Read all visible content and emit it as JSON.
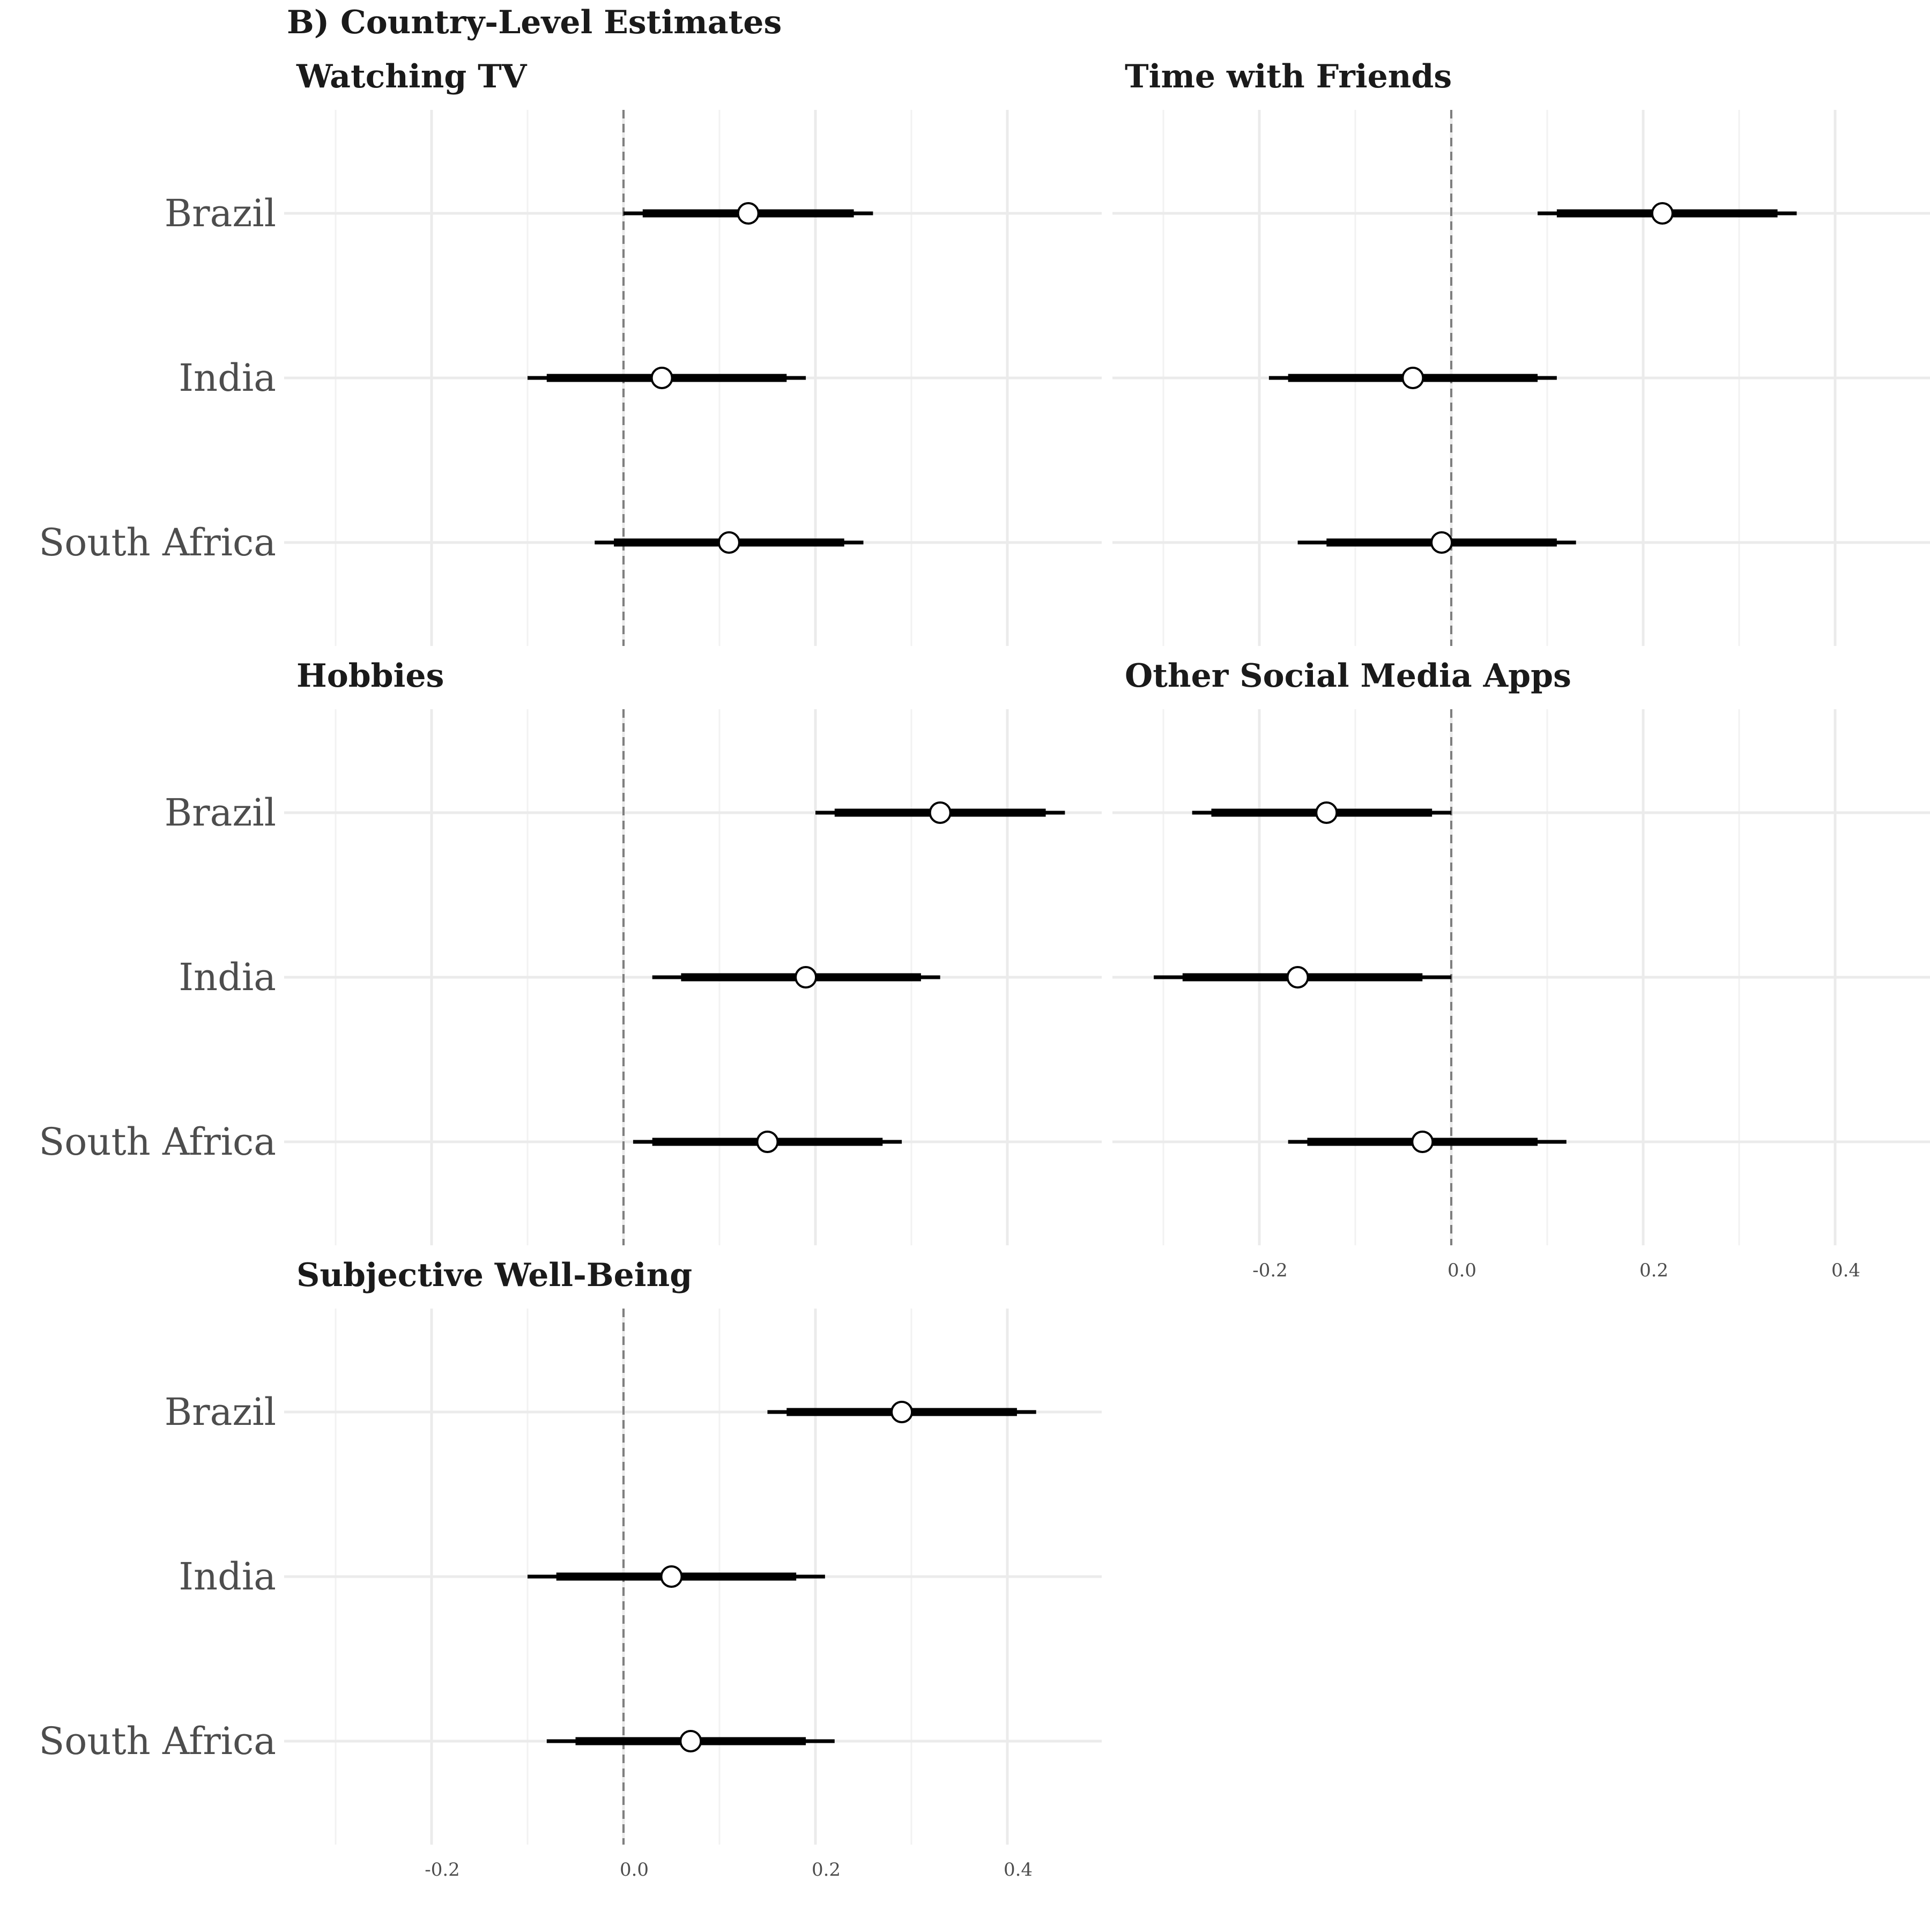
{
  "chart_data": {
    "type": "scatter",
    "title": "B) Country-Level Estimates",
    "categories": [
      "Brazil",
      "India",
      "South Africa"
    ],
    "xlim": [
      -0.35,
      0.5
    ],
    "x_ticks": [
      -0.2,
      0.0,
      0.2,
      0.4
    ],
    "x_tick_labels": [
      "-0.2",
      "0.0",
      "0.2",
      "0.4"
    ],
    "reference_line": 0,
    "grid": true,
    "facets": [
      {
        "title": "Watching TV",
        "series": [
          {
            "category": "Brazil",
            "estimate": 0.13,
            "ci_inner": [
              0.02,
              0.24
            ],
            "ci_outer": [
              -0.0,
              0.26
            ]
          },
          {
            "category": "India",
            "estimate": 0.04,
            "ci_inner": [
              -0.08,
              0.17
            ],
            "ci_outer": [
              -0.1,
              0.19
            ]
          },
          {
            "category": "South Africa",
            "estimate": 0.11,
            "ci_inner": [
              -0.01,
              0.23
            ],
            "ci_outer": [
              -0.03,
              0.25
            ]
          }
        ]
      },
      {
        "title": "Time with Friends",
        "series": [
          {
            "category": "Brazil",
            "estimate": 0.22,
            "ci_inner": [
              0.11,
              0.34
            ],
            "ci_outer": [
              0.09,
              0.36
            ]
          },
          {
            "category": "India",
            "estimate": -0.04,
            "ci_inner": [
              -0.17,
              0.09
            ],
            "ci_outer": [
              -0.19,
              0.11
            ]
          },
          {
            "category": "South Africa",
            "estimate": -0.01,
            "ci_inner": [
              -0.13,
              0.11
            ],
            "ci_outer": [
              -0.16,
              0.13
            ]
          }
        ]
      },
      {
        "title": "Hobbies",
        "series": [
          {
            "category": "Brazil",
            "estimate": 0.33,
            "ci_inner": [
              0.22,
              0.44
            ],
            "ci_outer": [
              0.2,
              0.46
            ]
          },
          {
            "category": "India",
            "estimate": 0.19,
            "ci_inner": [
              0.06,
              0.31
            ],
            "ci_outer": [
              0.03,
              0.33
            ]
          },
          {
            "category": "South Africa",
            "estimate": 0.15,
            "ci_inner": [
              0.03,
              0.27
            ],
            "ci_outer": [
              0.01,
              0.29
            ]
          }
        ]
      },
      {
        "title": "Other Social Media Apps",
        "series": [
          {
            "category": "Brazil",
            "estimate": -0.13,
            "ci_inner": [
              -0.25,
              -0.02
            ],
            "ci_outer": [
              -0.27,
              0.0
            ]
          },
          {
            "category": "India",
            "estimate": -0.16,
            "ci_inner": [
              -0.28,
              -0.03
            ],
            "ci_outer": [
              -0.31,
              -0.0
            ]
          },
          {
            "category": "South Africa",
            "estimate": -0.03,
            "ci_inner": [
              -0.15,
              0.09
            ],
            "ci_outer": [
              -0.17,
              0.12
            ]
          }
        ]
      },
      {
        "title": "Subjective Well-Being",
        "series": [
          {
            "category": "Brazil",
            "estimate": 0.29,
            "ci_inner": [
              0.17,
              0.41
            ],
            "ci_outer": [
              0.15,
              0.43
            ]
          },
          {
            "category": "India",
            "estimate": 0.05,
            "ci_inner": [
              -0.07,
              0.18
            ],
            "ci_outer": [
              -0.1,
              0.21
            ]
          },
          {
            "category": "South Africa",
            "estimate": 0.07,
            "ci_inner": [
              -0.05,
              0.19
            ],
            "ci_outer": [
              -0.08,
              0.22
            ]
          }
        ]
      }
    ]
  }
}
